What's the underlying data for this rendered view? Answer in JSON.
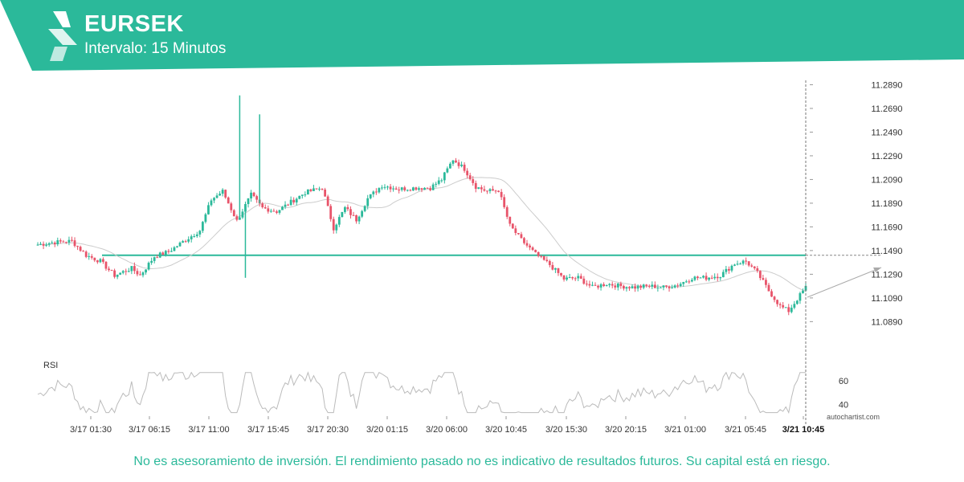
{
  "header": {
    "symbol": "EURSEK",
    "interval": "Intervalo: 15 Minutos",
    "brand_color": "#2bb99a"
  },
  "disclaimer": "No es asesoramiento de inversión. El rendimiento pasado no es indicativo de resultados futuros. Su capital está en riesgo.",
  "watermark": "autochartist.com",
  "chart_data": {
    "type": "candlestick",
    "x_tick_labels": [
      "3/17 01:30",
      "3/17 06:15",
      "3/17 11:00",
      "3/17 15:45",
      "3/17 20:30",
      "3/20 01:15",
      "3/20 06:00",
      "3/20 10:45",
      "3/20 15:30",
      "3/20 20:15",
      "3/21 01:00",
      "3/21 05:45",
      "3/21 10:45"
    ],
    "y_tick_labels": [
      "11.2890",
      "11.2690",
      "11.2490",
      "11.2290",
      "11.2090",
      "11.1890",
      "11.1690",
      "11.1490",
      "11.1290",
      "11.1090",
      "11.0890"
    ],
    "ylim": [
      11.075,
      11.29
    ],
    "support_level": 11.145,
    "current_time_label": "3/21 10:45",
    "colors": {
      "up": "#2bb99a",
      "down": "#e8546a",
      "level": "#2bb99a",
      "ma": "#cccccc",
      "rsi": "#bbbbbb"
    },
    "ohlc_anchors": [
      [
        0,
        11.154
      ],
      [
        6,
        11.156
      ],
      [
        12,
        11.157
      ],
      [
        17,
        11.145
      ],
      [
        22,
        11.14
      ],
      [
        27,
        11.128
      ],
      [
        33,
        11.134
      ],
      [
        36,
        11.128
      ],
      [
        41,
        11.144
      ],
      [
        46,
        11.148
      ],
      [
        52,
        11.158
      ],
      [
        57,
        11.166
      ],
      [
        61,
        11.192
      ],
      [
        65,
        11.199
      ],
      [
        70,
        11.174
      ],
      [
        75,
        11.196
      ],
      [
        79,
        11.185
      ],
      [
        84,
        11.182
      ],
      [
        89,
        11.19
      ],
      [
        94,
        11.198
      ],
      [
        100,
        11.202
      ],
      [
        104,
        11.168
      ],
      [
        108,
        11.185
      ],
      [
        112,
        11.175
      ],
      [
        116,
        11.193
      ],
      [
        121,
        11.204
      ],
      [
        127,
        11.201
      ],
      [
        133,
        11.202
      ],
      [
        138,
        11.202
      ],
      [
        142,
        11.209
      ],
      [
        146,
        11.226
      ],
      [
        150,
        11.218
      ],
      [
        154,
        11.203
      ],
      [
        158,
        11.199
      ],
      [
        162,
        11.2
      ],
      [
        166,
        11.17
      ],
      [
        170,
        11.158
      ],
      [
        175,
        11.146
      ],
      [
        180,
        11.137
      ],
      [
        185,
        11.125
      ],
      [
        190,
        11.126
      ],
      [
        195,
        11.118
      ],
      [
        200,
        11.121
      ],
      [
        205,
        11.119
      ],
      [
        210,
        11.118
      ],
      [
        215,
        11.119
      ],
      [
        220,
        11.118
      ],
      [
        225,
        11.12
      ],
      [
        230,
        11.126
      ],
      [
        235,
        11.126
      ],
      [
        240,
        11.128
      ],
      [
        245,
        11.138
      ],
      [
        249,
        11.14
      ],
      [
        253,
        11.13
      ],
      [
        257,
        11.115
      ],
      [
        261,
        11.102
      ],
      [
        264,
        11.098
      ],
      [
        267,
        11.108
      ],
      [
        270,
        11.118
      ]
    ],
    "spikes": [
      {
        "x": 71,
        "value": 11.28
      },
      {
        "x": 78,
        "value": 11.264
      },
      {
        "x": 73,
        "value": 11.126
      }
    ],
    "rsi": {
      "label": "RSI",
      "ticks": [
        60,
        40
      ],
      "ylim": [
        30,
        75
      ]
    }
  }
}
